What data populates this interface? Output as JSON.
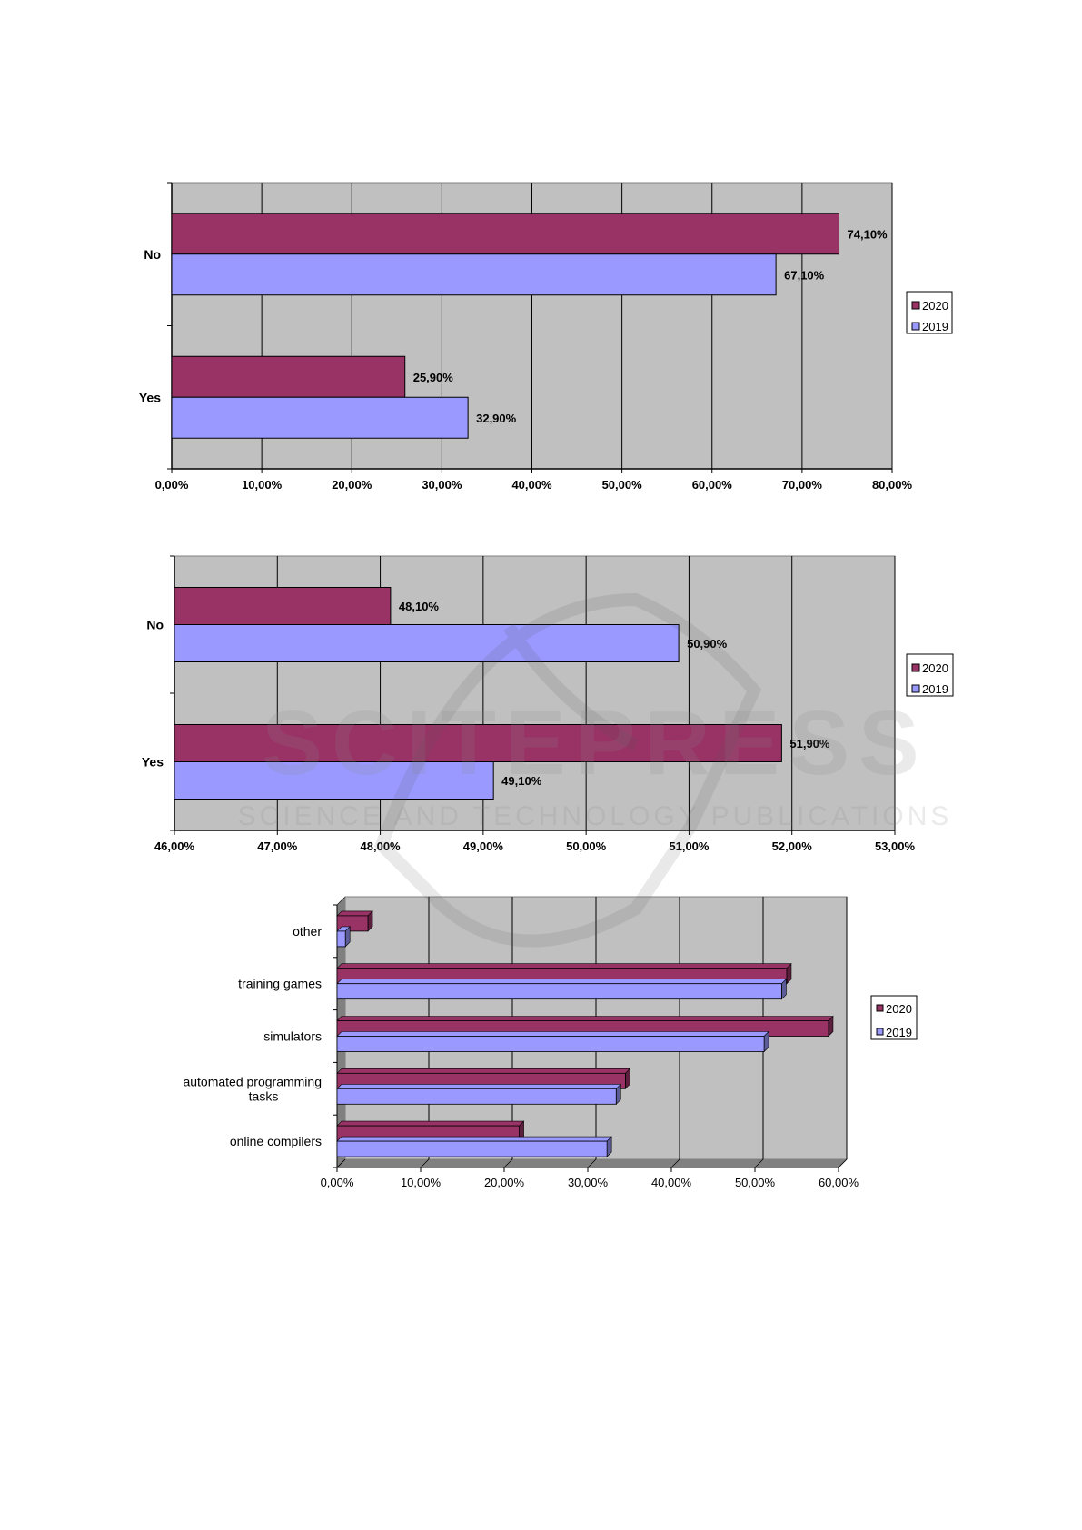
{
  "chart_data": [
    {
      "type": "bar",
      "orientation": "horizontal",
      "categories": [
        "No",
        "Yes"
      ],
      "series": [
        {
          "name": "2020",
          "values": [
            74.1,
            25.9
          ],
          "labels": [
            "74,10%",
            "25,90%"
          ]
        },
        {
          "name": "2019",
          "values": [
            67.1,
            32.9
          ],
          "labels": [
            "67,10%",
            "32,90%"
          ]
        }
      ],
      "xlim": [
        0,
        80
      ],
      "ticks": [
        0,
        10,
        20,
        30,
        40,
        50,
        60,
        70,
        80
      ],
      "tick_labels": [
        "0,00%",
        "10,00%",
        "20,00%",
        "30,00%",
        "40,00%",
        "50,00%",
        "60,00%",
        "70,00%",
        "80,00%"
      ],
      "grid": true,
      "legend": "right",
      "colors": {
        "2020": "#993366",
        "2019": "#9999ff",
        "plot": "#c0c0c0"
      }
    },
    {
      "type": "bar",
      "orientation": "horizontal",
      "categories": [
        "No",
        "Yes"
      ],
      "series": [
        {
          "name": "2020",
          "values": [
            48.1,
            51.9
          ],
          "labels": [
            "48,10%",
            "51,90%"
          ]
        },
        {
          "name": "2019",
          "values": [
            50.9,
            49.1
          ],
          "labels": [
            "50,90%",
            "49,10%"
          ]
        }
      ],
      "xlim": [
        46,
        53
      ],
      "ticks": [
        46,
        47,
        48,
        49,
        50,
        51,
        52,
        53
      ],
      "tick_labels": [
        "46,00%",
        "47,00%",
        "48,00%",
        "49,00%",
        "50,00%",
        "51,00%",
        "52,00%",
        "53,00%"
      ],
      "grid": true,
      "legend": "right",
      "colors": {
        "2020": "#993366",
        "2019": "#9999ff",
        "plot": "#c0c0c0"
      }
    },
    {
      "type": "bar",
      "orientation": "horizontal",
      "style": "3d",
      "categories": [
        "other",
        "training games",
        "simulators",
        "automated programming tasks",
        "online compilers"
      ],
      "category_lines": [
        [
          "other"
        ],
        [
          "training games"
        ],
        [
          "simulators"
        ],
        [
          "automated programming",
          "tasks"
        ],
        [
          "online compilers"
        ]
      ],
      "series": [
        {
          "name": "2020",
          "values": [
            3.7,
            53.8,
            58.8,
            34.5,
            21.8
          ]
        },
        {
          "name": "2019",
          "values": [
            1.0,
            53.2,
            51.1,
            33.4,
            32.3
          ]
        }
      ],
      "xlim": [
        0,
        60
      ],
      "ticks": [
        0,
        10,
        20,
        30,
        40,
        50,
        60
      ],
      "tick_labels": [
        "0,00%",
        "10,00%",
        "20,00%",
        "30,00%",
        "40,00%",
        "50,00%",
        "60,00%"
      ],
      "grid": true,
      "legend": "right",
      "colors": {
        "2020": "#993366",
        "2019": "#9999ff",
        "plot": "#c0c0c0"
      }
    }
  ],
  "watermark": {
    "title": "SCITEPRESS",
    "subtitle": "SCIENCE AND TECHNOLOGY PUBLICATIONS"
  }
}
